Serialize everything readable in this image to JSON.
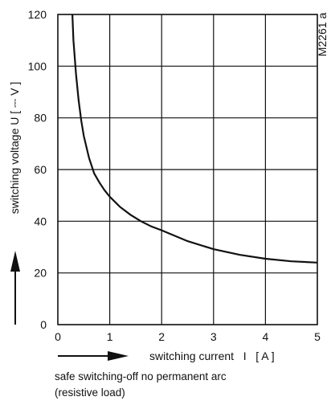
{
  "chart_data": {
    "type": "line",
    "ref_code": "M2261 a",
    "xlabel": "switching current   I   [ A ]",
    "ylabel": "switching voltage  U  [ ⎓ V ]",
    "xlim": [
      0,
      5
    ],
    "ylim": [
      0,
      120
    ],
    "x_ticks": [
      0,
      1,
      2,
      3,
      4,
      5
    ],
    "y_ticks": [
      0,
      20,
      40,
      60,
      80,
      100,
      120
    ],
    "grid": true,
    "series": [
      {
        "color": "#111111",
        "x": [
          0.28,
          0.3,
          0.35,
          0.4,
          0.45,
          0.5,
          0.6,
          0.7,
          0.8,
          0.9,
          1.0,
          1.2,
          1.4,
          1.6,
          1.8,
          2.0,
          2.5,
          3.0,
          3.5,
          4.0,
          4.5,
          5.0
        ],
        "y": [
          120,
          110,
          97,
          87,
          79,
          73,
          64.5,
          58.5,
          55,
          52,
          49.5,
          45.5,
          42.5,
          40,
          38,
          36.5,
          32.3,
          29.2,
          27,
          25.5,
          24.5,
          24
        ]
      }
    ]
  },
  "notes": {
    "line1": "safe switching-off no permanent arc",
    "line2": "(resistive load)"
  }
}
